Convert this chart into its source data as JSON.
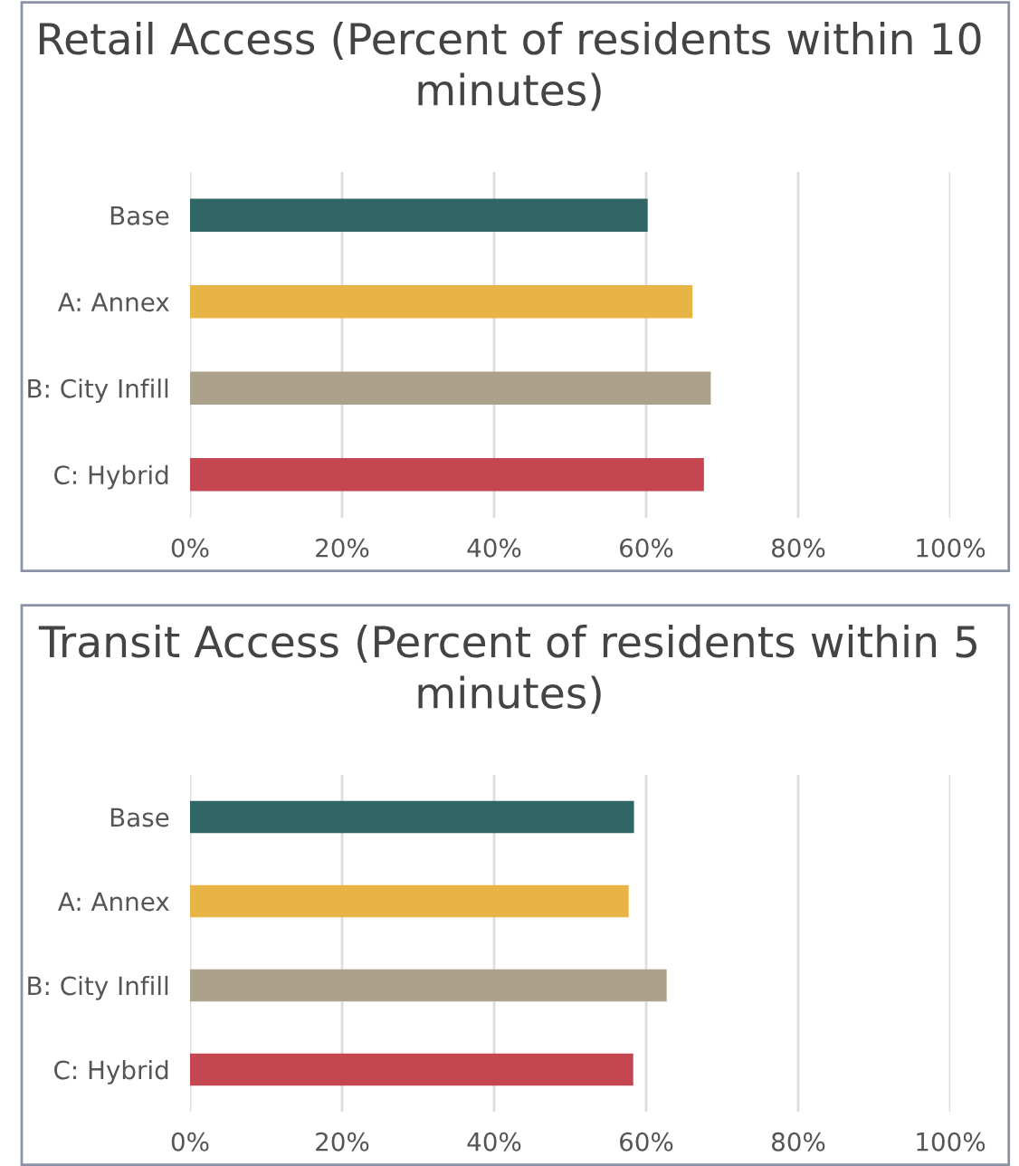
{
  "chart_data": [
    {
      "type": "bar",
      "orientation": "horizontal",
      "title": "Retail Access (Percent of residents within 10 minutes)",
      "categories": [
        "Base",
        "A: Annex",
        "B: City Infill",
        "C: Hybrid"
      ],
      "values": [
        60.2,
        66.1,
        68.5,
        67.6
      ],
      "colors": [
        "#306666",
        "#e9b446",
        "#aca18a",
        "#c34651"
      ],
      "xlim": [
        0,
        100
      ],
      "xticks": [
        {
          "value": 0,
          "label": "0%"
        },
        {
          "value": 20,
          "label": "20%"
        },
        {
          "value": 40,
          "label": "40%"
        },
        {
          "value": 60,
          "label": "60%"
        },
        {
          "value": 80,
          "label": "80%"
        },
        {
          "value": 100,
          "label": "100%"
        }
      ],
      "grid": "x"
    },
    {
      "type": "bar",
      "orientation": "horizontal",
      "title": "Transit Access (Percent of residents within 5 minutes)",
      "categories": [
        "Base",
        "A: Annex",
        "B: City Infill",
        "C: Hybrid"
      ],
      "values": [
        58.4,
        57.7,
        62.7,
        58.3
      ],
      "colors": [
        "#306666",
        "#e9b446",
        "#aca18a",
        "#c34651"
      ],
      "xlim": [
        0,
        100
      ],
      "xticks": [
        {
          "value": 0,
          "label": "0%"
        },
        {
          "value": 20,
          "label": "20%"
        },
        {
          "value": 40,
          "label": "40%"
        },
        {
          "value": 60,
          "label": "60%"
        },
        {
          "value": 80,
          "label": "80%"
        },
        {
          "value": 100,
          "label": "100%"
        }
      ],
      "grid": "x"
    }
  ]
}
